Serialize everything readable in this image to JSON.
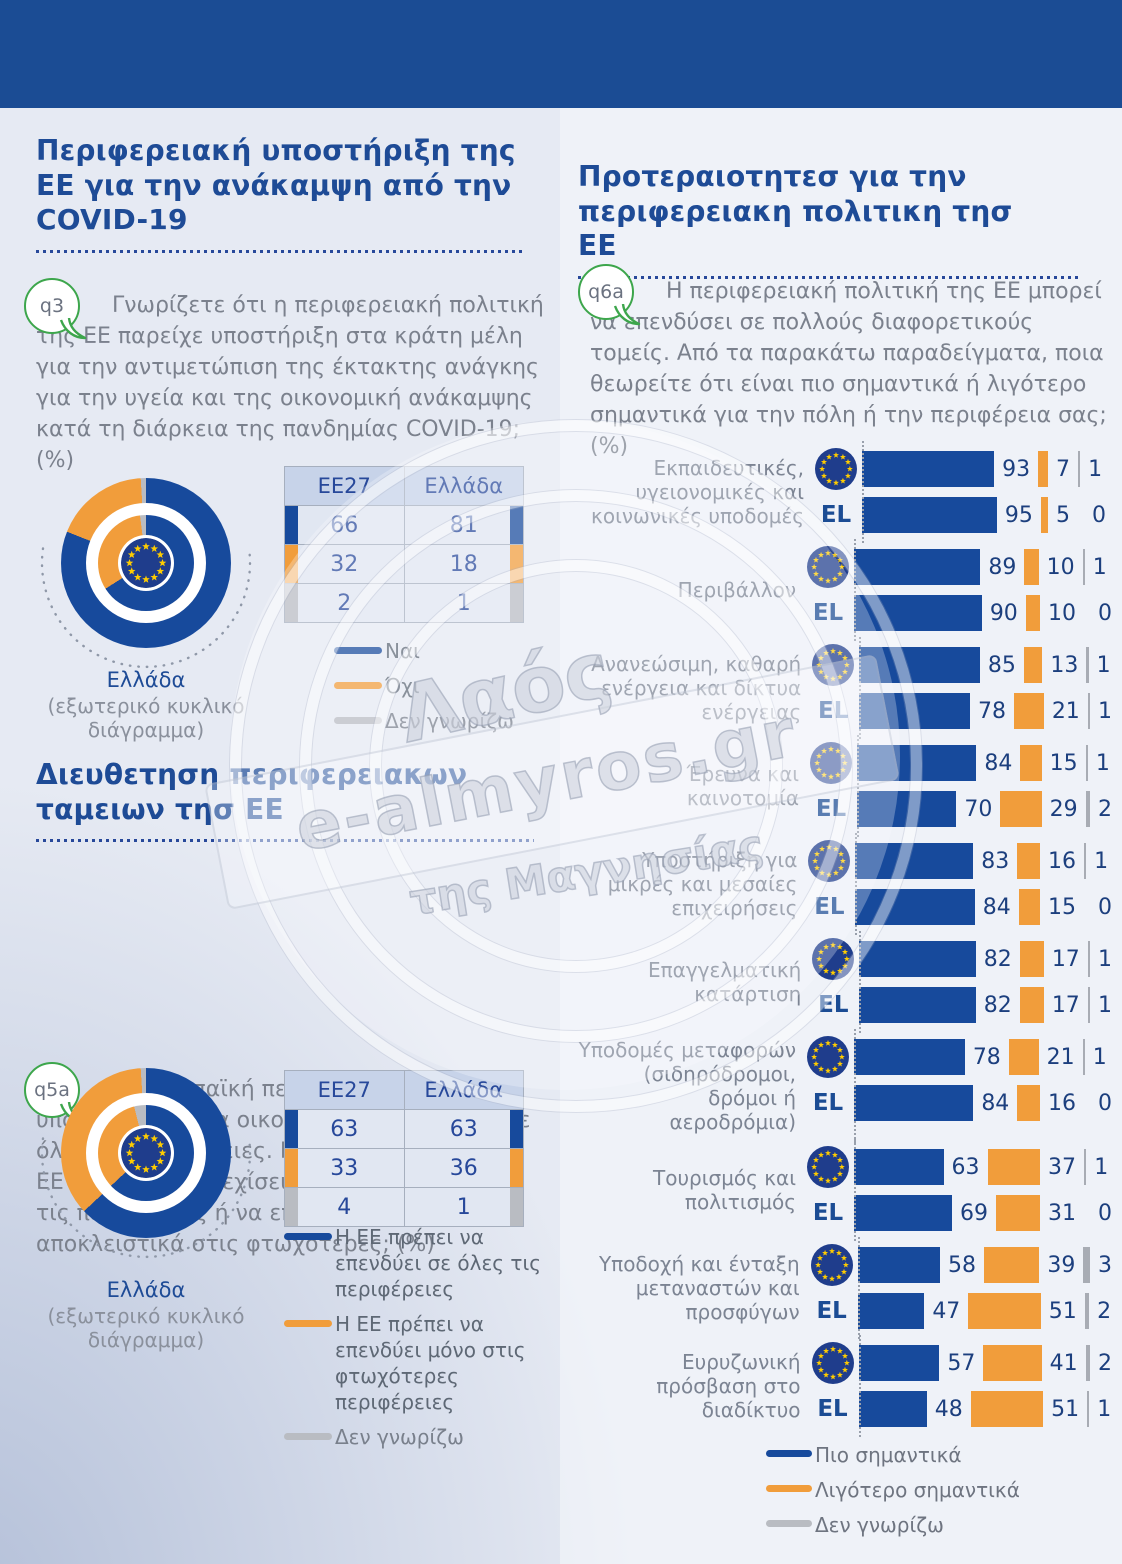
{
  "colors": {
    "blue": "#174A9C",
    "orange": "#F19D3B",
    "gray": "#B9BCC2",
    "tick_gray": "#A8ACB4",
    "navy": "#1E4B96",
    "header_band": "#1B4C94",
    "green": "#3DA64C",
    "text_gray": "#7B818D",
    "flag_navy": "#1F3D8C",
    "star_yellow": "#FFCC00"
  },
  "left": {
    "section1": {
      "title": "Περιφερειακή υποστήριξη της ΕΕ για την ανάκαμψη από την COVID-19",
      "q_label": "q3",
      "question": "Γνωρίζετε ότι η περιφερειακή πολιτική της ΕΕ παρείχε υποστήριξη στα κράτη μέλη για την αντιμετώπιση της έκτακτης ανάγκης για την υγεία και της οικονομική ανάκαμψης κατά τη διάρκεια της πανδημίας COVID-19; (%)",
      "donut": {
        "outer_label": "Ελλάδα",
        "outer_sublabel": "(εξωτερικό κυκλικό διάγραμμα)",
        "outer_values": [
          81,
          18,
          1
        ],
        "inner_values": [
          66,
          32,
          2
        ]
      },
      "table": {
        "headers": [
          "ΕΕ27",
          "Ελλάδα"
        ],
        "rows": [
          [
            66,
            81
          ],
          [
            32,
            18
          ],
          [
            2,
            1
          ]
        ]
      },
      "legend": [
        "Ναι",
        "Όχι",
        "Δεν γνωρίζω"
      ]
    },
    "section2": {
      "title": "Διευθετηση περιφερειακων ταμειων τησ ΕΕ",
      "q_label": "q5a",
      "question": "Η ευρωπαϊκή περιφερειακή πολιτική υποστηρίζει έργα οικονομικής ανάπτυξης σε όλες τις περιφέρειες. Κατά τη γνώμη σας, η ΕΕ πρέπει να συνεχίσει να επενδύει σε όλες τις περιφέρειες ή να επικεντρωθεί αποκλειστικά στις φτωχότερες; (%)",
      "donut": {
        "outer_label": "Ελλάδα",
        "outer_sublabel": "(εξωτερικό κυκλικό διάγραμμα)",
        "outer_values": [
          63,
          36,
          1
        ],
        "inner_values": [
          63,
          33,
          4
        ]
      },
      "table": {
        "headers": [
          "ΕΕ27",
          "Ελλάδα"
        ],
        "rows": [
          [
            63,
            63
          ],
          [
            33,
            36
          ],
          [
            4,
            1
          ]
        ]
      },
      "legend": [
        "Η ΕΕ πρέπει να επενδύει σε όλες τις περιφέρειες",
        "Η ΕΕ πρέπει να επενδύει μόνο στις φτωχότερες περιφέρειες",
        "Δεν γνωρίζω"
      ]
    }
  },
  "right": {
    "title": "Προτεραιοτητεσ για την περιφερειακη πολιτικη τησ ΕΕ",
    "q_label": "q6a",
    "question": "Η περιφερειακή πολιτική της ΕΕ μπορεί να επενδύσει σε πολλούς διαφορετικούς τομείς. Από τα παρακάτω παραδείγματα, ποια θεωρείτε ότι είναι πιο σημαντικά ή λιγότερο σημαντικά για την πόλη ή την περιφέρεια σας; (%)",
    "el_label": "EL",
    "rows": [
      {
        "category": "Εκπαιδευτικές, υγειονομικές και κοινωνικές υποδομές",
        "eu": [
          93,
          7,
          1
        ],
        "el": [
          95,
          5,
          0
        ]
      },
      {
        "category": "Περιβάλλον",
        "eu": [
          89,
          10,
          1
        ],
        "el": [
          90,
          10,
          0
        ]
      },
      {
        "category": "Ανανεώσιμη, καθαρή ενέργεια και δίκτυα ενέργειας",
        "eu": [
          85,
          13,
          1
        ],
        "el": [
          78,
          21,
          1
        ]
      },
      {
        "category": "Έρευνα και καινοτομία",
        "eu": [
          84,
          15,
          1
        ],
        "el": [
          70,
          29,
          2
        ]
      },
      {
        "category": "Υποστήριξη για μικρές και μεσαίες επιχειρήσεις",
        "eu": [
          83,
          16,
          1
        ],
        "el": [
          84,
          15,
          0
        ]
      },
      {
        "category": "Επαγγελματική κατάρτιση",
        "eu": [
          82,
          17,
          1
        ],
        "el": [
          82,
          17,
          1
        ]
      },
      {
        "category": "Υποδομές μεταφορών (σιδηρόδρομοι, δρόμοι ή αεροδρόμια)",
        "eu": [
          78,
          21,
          1
        ],
        "el": [
          84,
          16,
          0
        ]
      },
      {
        "category": "Τουρισμός και πολιτισμός",
        "eu": [
          63,
          37,
          1
        ],
        "el": [
          69,
          31,
          0
        ]
      },
      {
        "category": "Υποδοχή και ένταξη μεταναστών και προσφύγων",
        "eu": [
          58,
          39,
          3
        ],
        "el": [
          47,
          51,
          2
        ]
      },
      {
        "category": "Ευρυζωνική πρόσβαση στο διαδίκτυο",
        "eu": [
          57,
          41,
          2
        ],
        "el": [
          48,
          51,
          1
        ]
      }
    ],
    "legend": [
      "Πιο σημαντικά",
      "Λιγότερο σημαντικά",
      "Δεν γνωρίζω"
    ]
  },
  "watermark": {
    "line1": "Λαός",
    "line2": "e-almyros.gr",
    "line3": "της Μαγνησίας"
  },
  "chart_data": [
    {
      "type": "pie",
      "subtype": "double-donut",
      "question_id": "q3",
      "title": "Γνωρίζετε ότι η περιφερειακή πολιτική της ΕΕ παρείχε υποστήριξη στα κράτη μέλη για την αντιμετώπιση της έκτακτης ανάγκης για την υγεία και της οικονομική ανάκαμψης κατά τη διάρκεια της πανδημίας COVID-19; (%)",
      "labels": [
        "Ναι",
        "Όχι",
        "Δεν γνωρίζω"
      ],
      "series": [
        {
          "name": "ΕΕ27",
          "ring": "inner",
          "values": [
            66,
            32,
            2
          ]
        },
        {
          "name": "Ελλάδα",
          "ring": "outer",
          "values": [
            81,
            18,
            1
          ]
        }
      ]
    },
    {
      "type": "pie",
      "subtype": "double-donut",
      "question_id": "q5a",
      "title": "Η ευρωπαϊκή περιφερειακή πολιτική υποστηρίζει έργα οικονομικής ανάπτυξης σε όλες τις περιφέρειες. Κατά τη γνώμη σας, η ΕΕ πρέπει να συνεχίσει να επενδύει σε όλες τις περιφέρειες ή να επικεντρωθεί αποκλειστικά στις φτωχότερες; (%)",
      "labels": [
        "Η ΕΕ πρέπει να επενδύει σε όλες τις περιφέρειες",
        "Η ΕΕ πρέπει να επενδύει μόνο στις φτωχότερες περιφέρειες",
        "Δεν γνωρίζω"
      ],
      "series": [
        {
          "name": "ΕΕ27",
          "ring": "inner",
          "values": [
            63,
            33,
            4
          ]
        },
        {
          "name": "Ελλάδα",
          "ring": "outer",
          "values": [
            63,
            36,
            1
          ]
        }
      ]
    },
    {
      "type": "bar",
      "orientation": "horizontal",
      "stacked": true,
      "question_id": "q6a",
      "title": "Η περιφερειακή πολιτική της ΕΕ μπορεί να επενδύσει σε πολλούς διαφορετικούς τομείς. Από τα παρακάτω παραδείγματα, ποια θεωρείτε ότι είναι πιο σημαντικά ή λιγότερο σημαντικά για την πόλη ή την περιφέρεια σας; (%)",
      "series_labels": [
        "Πιο σημαντικά",
        "Λιγότερο σημαντικά",
        "Δεν γνωρίζω"
      ],
      "categories": [
        "Εκπαιδευτικές, υγειονομικές και κοινωνικές υποδομές",
        "Περιβάλλον",
        "Ανανεώσιμη, καθαρή ενέργεια και δίκτυα ενέργειας",
        "Έρευνα και καινοτομία",
        "Υποστήριξη για μικρές και μεσαίες επιχειρήσεις",
        "Επαγγελματική κατάρτιση",
        "Υποδομές μεταφορών (σιδηρόδρομοι, δρόμοι ή αεροδρόμια)",
        "Τουρισμός και πολιτισμός",
        "Υποδοχή και ένταξη μεταναστών και προσφύγων",
        "Ευρυζωνική πρόσβαση στο διαδίκτυο"
      ],
      "groups": [
        {
          "ΕΕ27": [
            93,
            7,
            1
          ],
          "EL": [
            95,
            5,
            0
          ]
        },
        {
          "ΕΕ27": [
            89,
            10,
            1
          ],
          "EL": [
            90,
            10,
            0
          ]
        },
        {
          "ΕΕ27": [
            85,
            13,
            1
          ],
          "EL": [
            78,
            21,
            1
          ]
        },
        {
          "ΕΕ27": [
            84,
            15,
            1
          ],
          "EL": [
            70,
            29,
            2
          ]
        },
        {
          "ΕΕ27": [
            83,
            16,
            1
          ],
          "EL": [
            84,
            15,
            0
          ]
        },
        {
          "ΕΕ27": [
            82,
            17,
            1
          ],
          "EL": [
            82,
            17,
            1
          ]
        },
        {
          "ΕΕ27": [
            78,
            21,
            1
          ],
          "EL": [
            84,
            16,
            0
          ]
        },
        {
          "ΕΕ27": [
            63,
            37,
            1
          ],
          "EL": [
            69,
            31,
            0
          ]
        },
        {
          "ΕΕ27": [
            58,
            39,
            3
          ],
          "EL": [
            47,
            51,
            2
          ]
        },
        {
          "ΕΕ27": [
            57,
            41,
            2
          ],
          "EL": [
            48,
            51,
            1
          ]
        }
      ]
    }
  ]
}
